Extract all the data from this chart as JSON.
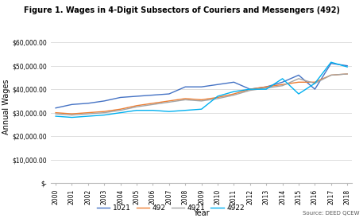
{
  "title": "Figure 1. Wages in 4-Digit Subsectors of Couriers and Messengers (492)",
  "xlabel": "Year",
  "ylabel": "Annual Wages",
  "source": "Source: DEED QCEW",
  "years": [
    2000,
    2001,
    2002,
    2003,
    2004,
    2005,
    2006,
    2007,
    2008,
    2009,
    2010,
    2011,
    2012,
    2013,
    2014,
    2015,
    2016,
    2017,
    2018
  ],
  "series": {
    "1021": [
      32000,
      33500,
      34000,
      35000,
      36500,
      37000,
      37500,
      38000,
      41000,
      41000,
      42000,
      43000,
      40000,
      41000,
      43000,
      46000,
      40000,
      51000,
      50000
    ],
    "492": [
      30000,
      29500,
      30000,
      30500,
      31500,
      33000,
      34000,
      35000,
      36000,
      35500,
      36500,
      38000,
      40000,
      41000,
      42000,
      43000,
      43000,
      46000,
      46500
    ],
    "4921": [
      29500,
      29000,
      29500,
      30000,
      31000,
      32500,
      33500,
      34500,
      35500,
      35000,
      36000,
      37500,
      39500,
      40500,
      41500,
      44500,
      42500,
      46000,
      46500
    ],
    "4922": [
      28500,
      28000,
      28500,
      29000,
      30000,
      31000,
      31000,
      30500,
      31000,
      31500,
      37000,
      39000,
      40000,
      40000,
      44500,
      38000,
      42500,
      51500,
      49500
    ]
  },
  "colors": {
    "1021": "#4472C4",
    "492": "#ED7D31",
    "4921": "#A5A5A5",
    "4922": "#00B0F0"
  },
  "ylim": [
    0,
    65000
  ],
  "yticks": [
    0,
    10000,
    20000,
    30000,
    40000,
    50000,
    60000
  ],
  "ytick_labels": [
    "$-",
    "$10,000.00",
    "$20,000.00",
    "$30,000.00",
    "$40,000.00",
    "$50,000.00",
    "$60,000.00"
  ],
  "background_color": "#FFFFFF",
  "grid_color": "#D9D9D9"
}
